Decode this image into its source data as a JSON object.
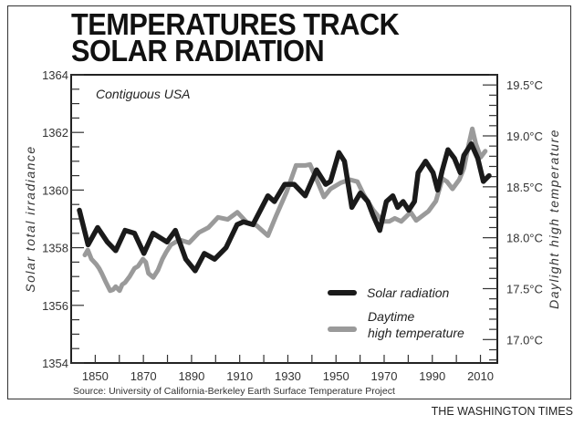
{
  "header": {
    "title_line1": "TEMPERATURES TRACK",
    "title_line2": "SOLAR RADIATION"
  },
  "footer": {
    "source": "Source: University of California-Berkeley Earth Surface Temperature Project",
    "credit": "THE WASHINGTON TIMES"
  },
  "chart_data": {
    "type": "line",
    "title": "Temperatures track solar radiation",
    "subtitle": "Contiguous USA",
    "xlabel": "",
    "ylabel": "Solar total irradiance",
    "y2label": "Daylight high temperature",
    "xlim": [
      1840,
      2017
    ],
    "ylim": [
      1354,
      1364
    ],
    "y2lim": [
      16.77,
      19.6
    ],
    "grid": false,
    "legend_position": "bottom-right",
    "x_ticks": [
      1850,
      1870,
      1890,
      1910,
      1930,
      1950,
      1970,
      1990,
      2010
    ],
    "x_minor_ticks": [
      1850,
      1860,
      1870,
      1880,
      1890,
      1900,
      1910,
      1920,
      1930,
      1940,
      1950,
      1960,
      1970,
      1980,
      1990,
      2000,
      2010
    ],
    "y_ticks": [
      1354,
      1356,
      1358,
      1360,
      1362,
      1364
    ],
    "y_tick_labels": [
      "1354",
      "1356",
      "1358",
      "1360",
      "1362",
      "1364"
    ],
    "y2_ticks": [
      17.0,
      17.5,
      18.0,
      18.5,
      19.0,
      19.5
    ],
    "y2_tick_labels": [
      "17.0°C",
      "17.5°C",
      "18.0°C",
      "18.5°C",
      "19.0°C",
      "19.5°C"
    ],
    "series": [
      {
        "name": "Solar radiation",
        "axis": "left",
        "color": "#1a1a1a",
        "x": [
          1843.4,
          1847,
          1851,
          1855,
          1858.5,
          1862.4,
          1866.3,
          1870.2,
          1874,
          1879.8,
          1883.3,
          1887.6,
          1891.5,
          1895.3,
          1899.6,
          1904.3,
          1908.9,
          1911.6,
          1915.5,
          1921.7,
          1924.4,
          1928.7,
          1932.6,
          1937.2,
          1941.9,
          1945.7,
          1947.7,
          1951.2,
          1953.5,
          1956.6,
          1960.1,
          1963.2,
          1965.5,
          1968.2,
          1970.9,
          1973.6,
          1975.6,
          1977.9,
          1980.2,
          1982.6,
          1984.1,
          1987.2,
          1990.3,
          1992.2,
          1994.2,
          1996.5,
          1999.2,
          2001.6,
          2003.1,
          2006.2,
          2008.9,
          2011.2,
          2013.6
        ],
        "y": [
          1359.3,
          1358.1,
          1358.7,
          1358.2,
          1357.9,
          1358.6,
          1358.5,
          1357.8,
          1358.5,
          1358.2,
          1358.6,
          1357.6,
          1357.2,
          1357.8,
          1357.6,
          1358.0,
          1358.8,
          1358.9,
          1358.8,
          1359.8,
          1359.6,
          1360.2,
          1360.2,
          1359.8,
          1360.7,
          1360.2,
          1360.3,
          1361.3,
          1361.0,
          1359.4,
          1359.9,
          1359.6,
          1359.1,
          1358.6,
          1359.6,
          1359.8,
          1359.4,
          1359.6,
          1359.3,
          1359.6,
          1360.6,
          1361.0,
          1360.6,
          1360.0,
          1360.7,
          1361.4,
          1361.1,
          1360.6,
          1361.2,
          1361.6,
          1361.1,
          1360.3,
          1360.5
        ]
      },
      {
        "name": "Daytime high temperature",
        "axis": "right",
        "color": "#9a9a9a",
        "x": [
          1845.7,
          1846.9,
          1848.4,
          1850.4,
          1851.6,
          1852.7,
          1854.3,
          1856.2,
          1857.4,
          1858.5,
          1860.1,
          1861.2,
          1862.4,
          1864.3,
          1866.3,
          1867.8,
          1869.8,
          1871,
          1872.1,
          1874.1,
          1876,
          1877.9,
          1879.5,
          1881.4,
          1885,
          1889,
          1893,
          1897,
          1901,
          1905,
          1909,
          1913,
          1917,
          1921.7,
          1925.2,
          1929.5,
          1933.4,
          1937.2,
          1939.2,
          1941.1,
          1945,
          1947.7,
          1952,
          1955.8,
          1958.9,
          1961.6,
          1965.5,
          1969.4,
          1972.1,
          1974.4,
          1977.1,
          1981,
          1983.3,
          1988.4,
          1991.5,
          1994.2,
          1996.1,
          1998.4,
          2001.2,
          2003.1,
          2005,
          2006.6,
          2008.1,
          2010.1,
          2012
        ],
        "y": [
          17.83,
          17.88,
          17.79,
          17.74,
          17.7,
          17.65,
          17.57,
          17.48,
          17.49,
          17.52,
          17.48,
          17.54,
          17.56,
          17.62,
          17.7,
          17.72,
          17.79,
          17.76,
          17.65,
          17.61,
          17.68,
          17.79,
          17.86,
          17.93,
          17.98,
          17.95,
          18.05,
          18.1,
          18.2,
          18.18,
          18.25,
          18.15,
          18.12,
          18.02,
          18.22,
          18.45,
          18.71,
          18.71,
          18.72,
          18.62,
          18.4,
          18.48,
          18.54,
          18.57,
          18.55,
          18.42,
          18.27,
          18.16,
          18.16,
          18.19,
          18.16,
          18.25,
          18.17,
          18.26,
          18.36,
          18.58,
          18.55,
          18.48,
          18.57,
          18.68,
          18.9,
          19.07,
          18.92,
          18.79,
          18.85
        ]
      }
    ],
    "legend": [
      {
        "label": "Solar radiation",
        "color": "#1a1a1a"
      },
      {
        "label_line1": "Daytime",
        "label_line2": "high temperature",
        "color": "#9a9a9a"
      }
    ]
  }
}
